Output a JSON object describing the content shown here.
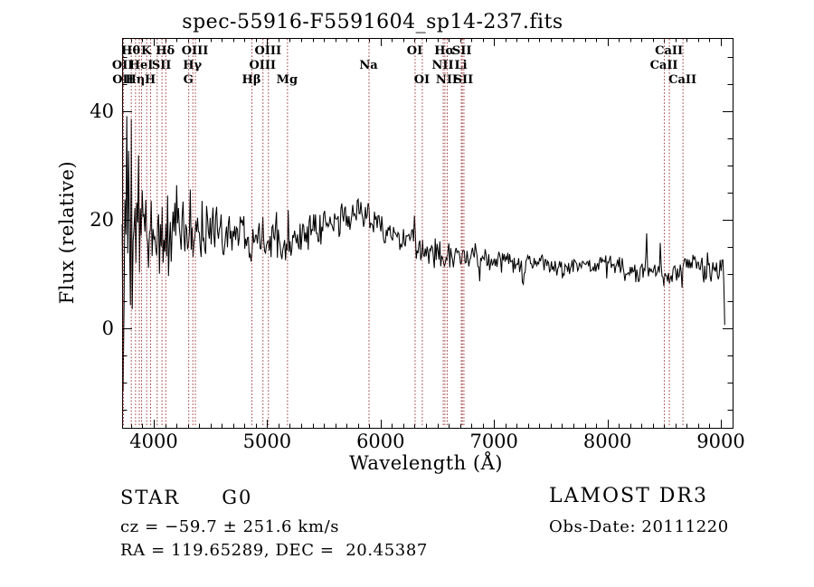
{
  "title": "spec-55916-F5591604_sp14-237.fits",
  "footer": {
    "object_type": "STAR",
    "subclass": "G0",
    "cz_line": "cz = −59.7 ± 251.6 km/s",
    "radec_line": "RA = 119.65289, DEC =  20.45387",
    "survey": "LAMOST DR3",
    "obs_date_line": "Obs-Date: 20111220"
  },
  "colors": {
    "spectrum": "#000000",
    "line_marker": "#993333",
    "axis": "#000000",
    "background": "#ffffff",
    "text": "#000000"
  },
  "chart_data": {
    "type": "line",
    "title": "spec-55916-F5591604_sp14-237.fits",
    "xlabel": "Wavelength (Å)",
    "ylabel": "Flux (relative)",
    "xlim": [
      3721,
      9104
    ],
    "ylim": [
      -18.3,
      53.4
    ],
    "x_major_ticks": [
      4000,
      5000,
      6000,
      7000,
      8000,
      9000
    ],
    "x_minor_step": 100,
    "y_major_ticks": [
      0,
      20,
      40
    ],
    "y_minor_step": 5,
    "grid": false,
    "legend": null,
    "line_markers": [
      {
        "label": "OII",
        "row": 2,
        "wavelength": 3726.0
      },
      {
        "label": "OII",
        "row": 3,
        "wavelength": 3728.8
      },
      {
        "label": "Hθ",
        "row": 1,
        "wavelength": 3797.9
      },
      {
        "label": "Hη",
        "row": 3,
        "wavelength": 3835.4
      },
      {
        "label": "",
        "row": 0,
        "wavelength": 3868.7
      },
      {
        "label": "HeI",
        "row": 2,
        "wavelength": 3888.6
      },
      {
        "label": "K",
        "row": 1,
        "wavelength": 3933.7
      },
      {
        "label": "H",
        "row": 3,
        "wavelength": 3968.5
      },
      {
        "label": "",
        "row": 0,
        "wavelength": 4026.2
      },
      {
        "label": "SII",
        "row": 2,
        "wavelength": 4068.6
      },
      {
        "label": "Hδ",
        "row": 1,
        "wavelength": 4101.7
      },
      {
        "label": "G",
        "row": 3,
        "wavelength": 4304.4
      },
      {
        "label": "Hγ",
        "row": 2,
        "wavelength": 4340.5
      },
      {
        "label": "OIII",
        "row": 1,
        "wavelength": 4363.2
      },
      {
        "label": "Hβ",
        "row": 3,
        "wavelength": 4861.3
      },
      {
        "label": "OIII",
        "row": 2,
        "wavelength": 4958.9
      },
      {
        "label": "OIII",
        "row": 1,
        "wavelength": 5006.8
      },
      {
        "label": "Mg",
        "row": 3,
        "wavelength": 5175.3
      },
      {
        "label": "Na",
        "row": 2,
        "wavelength": 5893.9
      },
      {
        "label": "OI",
        "row": 1,
        "wavelength": 6300.3
      },
      {
        "label": "OI",
        "row": 3,
        "wavelength": 6363.8
      },
      {
        "label": "NII",
        "row": 2,
        "wavelength": 6548.1
      },
      {
        "label": "Hα",
        "row": 1,
        "wavelength": 6562.8
      },
      {
        "label": "NII",
        "row": 3,
        "wavelength": 6583.4
      },
      {
        "label": "Li",
        "row": 2,
        "wavelength": 6707.8
      },
      {
        "label": "SII",
        "row": 1,
        "wavelength": 6716.4
      },
      {
        "label": "SII",
        "row": 3,
        "wavelength": 6730.8
      },
      {
        "label": "CaII",
        "row": 2,
        "wavelength": 8498.0
      },
      {
        "label": "CaII",
        "row": 1,
        "wavelength": 8542.1
      },
      {
        "label": "CaII",
        "row": 3,
        "wavelength": 8662.1
      }
    ],
    "spectrum": {
      "x_start": 3722,
      "x_end": 9040,
      "step": 8,
      "seed": 1234,
      "continuum": [
        [
          3721,
          14
        ],
        [
          3750,
          16
        ],
        [
          3800,
          17
        ],
        [
          3850,
          18
        ],
        [
          3900,
          18
        ],
        [
          3950,
          17.5
        ],
        [
          4000,
          18
        ],
        [
          4050,
          17.5
        ],
        [
          4100,
          17
        ],
        [
          4150,
          17.5
        ],
        [
          4200,
          18
        ],
        [
          4250,
          17.5
        ],
        [
          4300,
          17
        ],
        [
          4350,
          17.5
        ],
        [
          4400,
          18
        ],
        [
          4500,
          18.5
        ],
        [
          4600,
          18
        ],
        [
          4700,
          18
        ],
        [
          4800,
          17.5
        ],
        [
          4900,
          17.5
        ],
        [
          5000,
          17
        ],
        [
          5100,
          16.5
        ],
        [
          5200,
          16.5
        ],
        [
          5300,
          17
        ],
        [
          5400,
          17.5
        ],
        [
          5500,
          18.5
        ],
        [
          5600,
          19.5
        ],
        [
          5700,
          20.5
        ],
        [
          5800,
          21.5
        ],
        [
          5850,
          21.5
        ],
        [
          5900,
          21
        ],
        [
          5950,
          20
        ],
        [
          6000,
          18.5
        ],
        [
          6050,
          17.5
        ],
        [
          6100,
          17
        ],
        [
          6150,
          16.5
        ],
        [
          6200,
          16
        ],
        [
          6250,
          15.5
        ],
        [
          6300,
          15
        ],
        [
          6350,
          14.5
        ],
        [
          6400,
          14.2
        ],
        [
          6500,
          13.9
        ],
        [
          6600,
          13.5
        ],
        [
          6700,
          13.2
        ],
        [
          6800,
          13
        ],
        [
          6900,
          12.8
        ],
        [
          7000,
          12.6
        ],
        [
          7100,
          12.4
        ],
        [
          7200,
          12.2
        ],
        [
          7300,
          12.2
        ],
        [
          7400,
          12.1
        ],
        [
          7500,
          11.8
        ],
        [
          7600,
          11.5
        ],
        [
          7700,
          11.4
        ],
        [
          7800,
          11.5
        ],
        [
          7900,
          11.6
        ],
        [
          8000,
          11.9
        ],
        [
          8050,
          12
        ],
        [
          8100,
          11.4
        ],
        [
          8200,
          10.2
        ],
        [
          8300,
          10.8
        ],
        [
          8400,
          10.8
        ],
        [
          8500,
          9.8
        ],
        [
          8550,
          9.4
        ],
        [
          8600,
          10
        ],
        [
          8650,
          10.5
        ],
        [
          8700,
          11.2
        ],
        [
          8750,
          12
        ],
        [
          8800,
          11.5
        ],
        [
          8850,
          11
        ],
        [
          8900,
          11.2
        ],
        [
          8950,
          10.8
        ],
        [
          9000,
          11
        ],
        [
          9020,
          11.5
        ],
        [
          9028,
          8
        ],
        [
          9034,
          2
        ],
        [
          9040,
          1.5
        ]
      ],
      "noise_amp": [
        [
          3721,
          22
        ],
        [
          3770,
          19
        ],
        [
          3810,
          14
        ],
        [
          3860,
          11
        ],
        [
          3910,
          8.5
        ],
        [
          3960,
          7.5
        ],
        [
          4000,
          6.5
        ],
        [
          4100,
          5.5
        ],
        [
          4200,
          5
        ],
        [
          4300,
          4.5
        ],
        [
          4400,
          4
        ],
        [
          4600,
          3.6
        ],
        [
          4800,
          3.2
        ],
        [
          5000,
          2.8
        ],
        [
          5200,
          2.4
        ],
        [
          5400,
          2.2
        ],
        [
          5600,
          2.1
        ],
        [
          5800,
          2.1
        ],
        [
          5900,
          2.3
        ],
        [
          6000,
          2.2
        ],
        [
          6200,
          2
        ],
        [
          6400,
          1.8
        ],
        [
          6600,
          1.7
        ],
        [
          6800,
          1.6
        ],
        [
          7000,
          1.5
        ],
        [
          7400,
          1.45
        ],
        [
          7800,
          1.4
        ],
        [
          8200,
          1.4
        ],
        [
          8450,
          1.6
        ],
        [
          8650,
          2
        ],
        [
          8800,
          2.3
        ],
        [
          8950,
          2.2
        ],
        [
          9040,
          2
        ]
      ],
      "features": [
        [
          4101.7,
          -2.5,
          10
        ],
        [
          4304.4,
          -2,
          12
        ],
        [
          4340.5,
          -2.5,
          10
        ],
        [
          4861.3,
          -4,
          9
        ],
        [
          5172,
          -1.5,
          12
        ],
        [
          5893,
          4.5,
          9
        ],
        [
          6302,
          9.5,
          8
        ],
        [
          6315,
          -4,
          8
        ],
        [
          6563,
          -2,
          12
        ],
        [
          6870,
          -3,
          18
        ],
        [
          7190,
          -1.5,
          25
        ],
        [
          7255,
          -4.5,
          15
        ],
        [
          7605,
          -1.8,
          25
        ],
        [
          8345,
          8,
          8
        ],
        [
          8468,
          5.5,
          8
        ],
        [
          8498,
          -2.5,
          8
        ],
        [
          8542,
          -3,
          8
        ],
        [
          8662,
          -3,
          8
        ]
      ]
    }
  }
}
